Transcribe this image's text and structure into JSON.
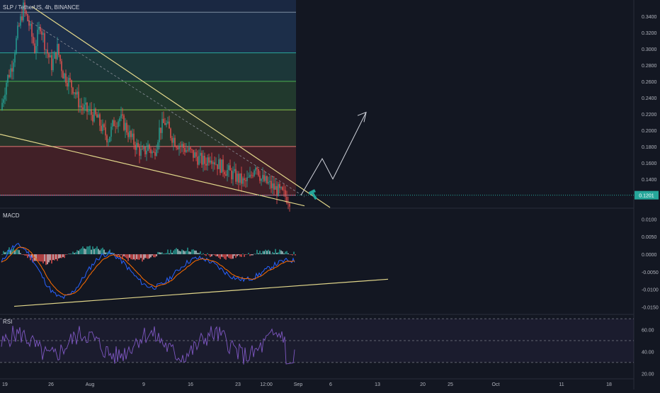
{
  "chart_data": {
    "type": "candlestick",
    "title": "SLP / TetherUS, 4h, BINANCE",
    "symbol_price_label": "0.1201",
    "x_ticks": [
      "19",
      "26",
      "Aug",
      "9",
      "16",
      "23",
      "12:00",
      "Sep",
      "6",
      "13",
      "20",
      "25",
      "Oct",
      "11",
      "18",
      "25"
    ],
    "price_axis": {
      "ticks": [
        "0.3600",
        "0.3400",
        "0.3200",
        "0.3000",
        "0.2800",
        "0.2600",
        "0.2400",
        "0.2200",
        "0.2000",
        "0.1800",
        "0.1600",
        "0.1400"
      ],
      "ylim": [
        0.105,
        0.36
      ]
    },
    "candles_close_path": [
      [
        0,
        0.225
      ],
      [
        1,
        0.26
      ],
      [
        2,
        0.28
      ],
      [
        3,
        0.32
      ],
      [
        4,
        0.35
      ],
      [
        5,
        0.33
      ],
      [
        6,
        0.3
      ],
      [
        7,
        0.33
      ],
      [
        8,
        0.3
      ],
      [
        9,
        0.28
      ],
      [
        10,
        0.3
      ],
      [
        11,
        0.27
      ],
      [
        12,
        0.26
      ],
      [
        13,
        0.25
      ],
      [
        14,
        0.23
      ],
      [
        15,
        0.225
      ],
      [
        16,
        0.22
      ],
      [
        17,
        0.215
      ],
      [
        18,
        0.2
      ],
      [
        19,
        0.19
      ],
      [
        20,
        0.21
      ],
      [
        21,
        0.215
      ],
      [
        22,
        0.205
      ],
      [
        23,
        0.19
      ],
      [
        24,
        0.18
      ],
      [
        25,
        0.17
      ],
      [
        26,
        0.18
      ],
      [
        27,
        0.17
      ],
      [
        28,
        0.2
      ],
      [
        29,
        0.21
      ],
      [
        30,
        0.195
      ],
      [
        31,
        0.185
      ],
      [
        32,
        0.18
      ],
      [
        33,
        0.175
      ],
      [
        34,
        0.17
      ],
      [
        35,
        0.165
      ],
      [
        36,
        0.16
      ],
      [
        37,
        0.17
      ],
      [
        38,
        0.16
      ],
      [
        39,
        0.155
      ],
      [
        40,
        0.15
      ],
      [
        41,
        0.145
      ],
      [
        42,
        0.14
      ],
      [
        43,
        0.135
      ],
      [
        44,
        0.14
      ],
      [
        45,
        0.16
      ],
      [
        46,
        0.14
      ],
      [
        47,
        0.135
      ],
      [
        48,
        0.13
      ],
      [
        49,
        0.125
      ],
      [
        50,
        0.12
      ],
      [
        51,
        0.115
      ]
    ],
    "fib_levels": [
      0.345,
      0.295,
      0.26,
      0.225,
      0.18,
      0.12
    ],
    "projection_path": [
      [
        0.12,
        "Sep"
      ],
      [
        0.17,
        "6"
      ],
      [
        0.14,
        "13"
      ],
      [
        0.22,
        "20"
      ]
    ],
    "macd": {
      "label": "MACD",
      "ticks": [
        "0.0100",
        "0.0050",
        "0.0000",
        "-0.0050",
        "-0.0100",
        "-0.0150"
      ],
      "ylim": [
        -0.0165,
        0.0125
      ]
    },
    "rsi": {
      "label": "RSI",
      "ticks": [
        "60.00",
        "40.00",
        "20.00"
      ],
      "ylim": [
        15,
        72
      ],
      "bands": [
        70,
        50,
        30
      ]
    }
  }
}
